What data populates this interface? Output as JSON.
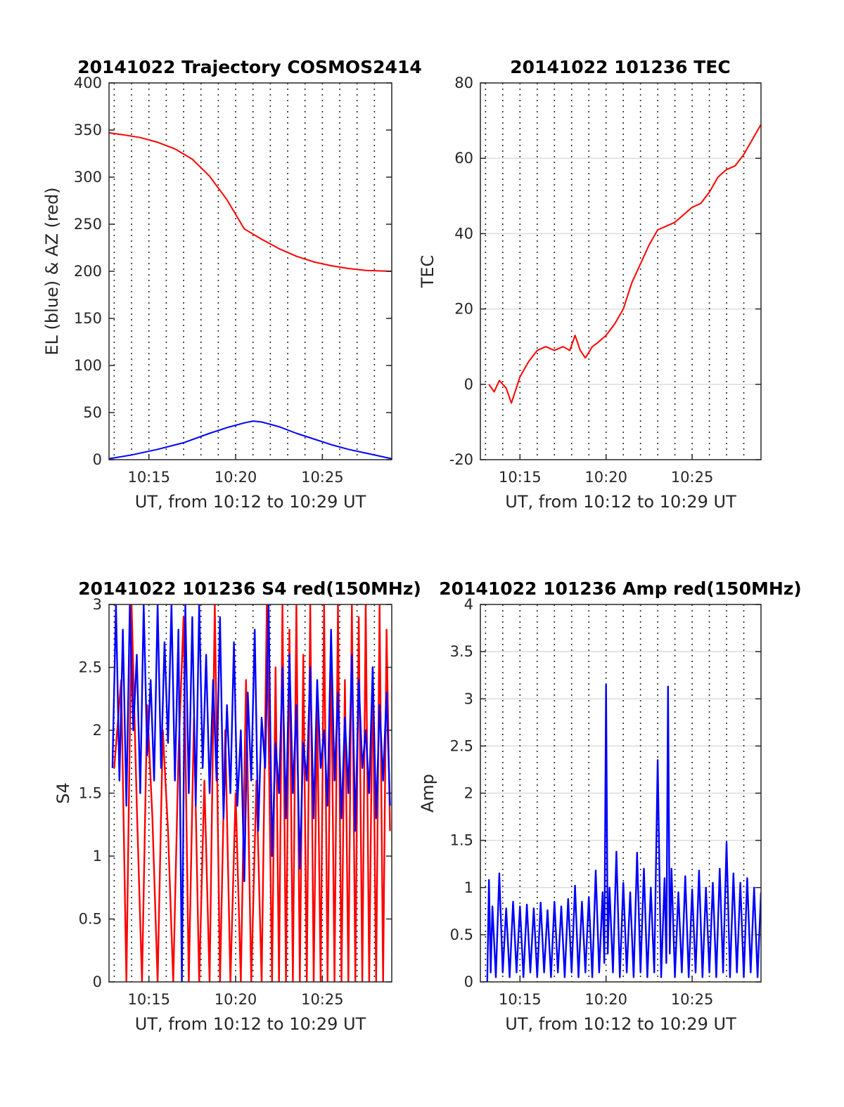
{
  "colors": {
    "red": "#ff0000",
    "blue": "#0000ff",
    "grid": "#262626",
    "axis": "#262626"
  },
  "chart_data": [
    {
      "id": "trajectory",
      "type": "line",
      "title": "20141022 Trajectory COSMOS2414",
      "xlabel": "UT, from 10:12 to 10:29 UT",
      "ylabel": "EL (blue) & AZ (red)",
      "xlim": [
        12.7,
        29.0
      ],
      "ylim": [
        0,
        400
      ],
      "xticks": [
        15,
        20,
        25
      ],
      "xticklabels": [
        "10:15",
        "10:20",
        "10:25"
      ],
      "yticks": [
        0,
        50,
        100,
        150,
        200,
        250,
        300,
        350,
        400
      ],
      "yticklabels": [
        "0",
        "50",
        "100",
        "150",
        "200",
        "250",
        "300",
        "350",
        "400"
      ],
      "grid": "vertical-dotted",
      "series": [
        {
          "color": "red",
          "x": [
            12.7,
            13.5,
            14.5,
            15.5,
            16.5,
            17.5,
            18.5,
            19.5,
            20.5,
            21.5,
            22.5,
            23.5,
            24.5,
            25.5,
            26.5,
            27.5,
            29.0
          ],
          "y": [
            347,
            345,
            342,
            337,
            330,
            319,
            301,
            276,
            245,
            234,
            224,
            216,
            210,
            206,
            203,
            201,
            200
          ]
        },
        {
          "color": "blue",
          "x": [
            12.7,
            14.0,
            15.5,
            17.0,
            18.5,
            19.5,
            20.5,
            21.0,
            21.5,
            22.5,
            23.5,
            24.5,
            25.5,
            26.5,
            27.5,
            29.0
          ],
          "y": [
            1,
            5,
            11,
            18,
            28,
            34,
            39,
            41,
            40,
            35,
            28,
            22,
            16,
            11,
            7,
            1
          ]
        }
      ]
    },
    {
      "id": "tec",
      "type": "line",
      "title": "20141022 101236 TEC",
      "xlabel": "UT, from 10:12 to 10:29 UT",
      "ylabel": "TEC",
      "xlim": [
        12.7,
        29.0
      ],
      "ylim": [
        -20,
        80
      ],
      "xticks": [
        15,
        20,
        25
      ],
      "xticklabels": [
        "10:15",
        "10:20",
        "10:25"
      ],
      "yticks": [
        -20,
        0,
        20,
        40,
        60,
        80
      ],
      "yticklabels": [
        "-20",
        "0",
        "20",
        "40",
        "60",
        "80"
      ],
      "grid": "horizontal-solid-vertical-dotted",
      "series": [
        {
          "color": "red",
          "x": [
            13.2,
            13.5,
            13.8,
            14.2,
            14.5,
            15.0,
            15.5,
            16.0,
            16.5,
            17.0,
            17.5,
            17.9,
            18.2,
            18.5,
            18.8,
            19.2,
            19.5,
            20.0,
            20.5,
            21.0,
            21.5,
            22.0,
            22.5,
            23.0,
            23.5,
            24.0,
            24.5,
            25.0,
            25.5,
            26.0,
            26.5,
            27.0,
            27.5,
            28.0,
            28.5,
            29.0
          ],
          "y": [
            0,
            -2,
            1,
            -1,
            -5,
            2,
            6,
            9,
            10,
            9,
            10,
            9,
            13,
            9,
            7,
            10,
            11,
            13,
            16,
            20,
            27,
            32,
            37,
            41,
            42,
            43,
            45,
            47,
            48,
            51,
            55,
            57,
            58,
            61,
            65,
            69
          ]
        }
      ]
    },
    {
      "id": "s4",
      "type": "line",
      "title": "20141022 101236 S4 red(150MHz)",
      "xlabel": "UT, from 10:12 to 10:29 UT",
      "ylabel": "S4",
      "xlim": [
        12.7,
        29.0
      ],
      "ylim": [
        0,
        3
      ],
      "xticks": [
        15,
        20,
        25
      ],
      "xticklabels": [
        "10:15",
        "10:20",
        "10:25"
      ],
      "yticks": [
        0,
        0.5,
        1,
        1.5,
        2,
        2.5,
        3
      ],
      "yticklabels": [
        "0",
        "0.5",
        "1",
        "1.5",
        "2",
        "2.5",
        "3"
      ],
      "grid": "vertical-dotted",
      "series": [
        {
          "color": "red",
          "x": [
            13.0,
            13.4,
            13.7,
            14.0,
            14.3,
            14.6,
            14.9,
            15.2,
            15.5,
            15.8,
            16.1,
            16.4,
            16.7,
            17.0,
            17.3,
            17.6,
            17.9,
            18.2,
            18.5,
            18.8,
            19.1,
            19.4,
            19.7,
            20.0,
            20.3,
            20.6,
            20.9,
            21.2,
            21.5,
            21.8,
            22.1,
            22.3,
            22.5,
            22.7,
            22.9,
            23.1,
            23.3,
            23.5,
            23.7,
            23.9,
            24.1,
            24.3,
            24.5,
            24.7,
            24.9,
            25.1,
            25.3,
            25.5,
            25.7,
            25.9,
            26.1,
            26.3,
            26.5,
            26.7,
            26.9,
            27.1,
            27.3,
            27.5,
            27.7,
            27.9,
            28.1,
            28.3,
            28.5,
            28.7,
            28.9
          ],
          "y": [
            1.7,
            2.4,
            0.0,
            3.0,
            1.4,
            0.0,
            2.2,
            1.3,
            0.0,
            2.0,
            1.2,
            0.0,
            1.8,
            2.9,
            0.0,
            2.1,
            0.0,
            1.6,
            0.0,
            3.0,
            0.0,
            2.0,
            0.0,
            1.5,
            0.0,
            2.4,
            0.0,
            1.6,
            0.0,
            3.0,
            0.0,
            2.5,
            0.0,
            3.0,
            0.0,
            2.8,
            0.0,
            3.0,
            0.0,
            2.6,
            0.0,
            3.0,
            0.0,
            2.2,
            0.0,
            3.0,
            0.0,
            2.7,
            0.0,
            3.0,
            0.0,
            2.4,
            0.0,
            3.0,
            0.0,
            2.9,
            0.0,
            3.0,
            0.0,
            2.5,
            0.0,
            3.0,
            0.0,
            2.8,
            1.2
          ]
        },
        {
          "color": "blue",
          "x": [
            12.9,
            13.1,
            13.3,
            13.5,
            13.7,
            13.9,
            14.1,
            14.3,
            14.5,
            14.7,
            14.9,
            15.1,
            15.3,
            15.5,
            15.7,
            15.9,
            16.1,
            16.3,
            16.5,
            16.7,
            16.9,
            17.1,
            17.3,
            17.5,
            17.7,
            17.9,
            18.1,
            18.3,
            18.5,
            18.7,
            18.9,
            19.1,
            19.3,
            19.5,
            19.7,
            19.9,
            20.1,
            20.3,
            20.5,
            20.7,
            20.9,
            21.1,
            21.3,
            21.5,
            21.7,
            21.9,
            22.1,
            22.3,
            22.5,
            22.7,
            22.9,
            23.1,
            23.3,
            23.5,
            23.7,
            23.9,
            24.1,
            24.3,
            24.5,
            24.7,
            24.9,
            25.1,
            25.3,
            25.5,
            25.7,
            25.9,
            26.1,
            26.3,
            26.5,
            26.7,
            26.9,
            27.1,
            27.3,
            27.5,
            27.7,
            27.9,
            28.1,
            28.3,
            28.5,
            28.7,
            28.9
          ],
          "y": [
            1.7,
            3.0,
            1.6,
            2.8,
            1.4,
            3.0,
            2.0,
            2.6,
            1.5,
            3.0,
            1.8,
            2.4,
            1.6,
            3.0,
            1.7,
            2.7,
            1.9,
            3.0,
            1.6,
            2.8,
            0.0,
            3.0,
            1.5,
            2.9,
            1.4,
            3.0,
            1.7,
            2.6,
            1.5,
            2.4,
            1.6,
            2.9,
            1.3,
            2.2,
            1.5,
            2.7,
            1.4,
            2.0,
            0.8,
            2.3,
            1.6,
            2.8,
            1.2,
            2.1,
            1.7,
            3.0,
            1.0,
            1.9,
            1.5,
            2.5,
            1.3,
            2.6,
            1.5,
            2.2,
            0.9,
            1.9,
            1.6,
            2.5,
            1.3,
            2.4,
            1.7,
            2.0,
            1.4,
            2.8,
            1.6,
            2.3,
            1.3,
            2.1,
            1.5,
            2.6,
            1.2,
            2.4,
            1.7,
            2.0,
            1.5,
            2.5,
            1.3,
            2.2,
            1.6,
            2.3,
            1.4
          ]
        }
      ]
    },
    {
      "id": "amp",
      "type": "line",
      "title": "20141022 101236 Amp red(150MHz)",
      "xlabel": "UT, from 10:12 to 10:29 UT",
      "ylabel": "Amp",
      "xlim": [
        12.7,
        29.0
      ],
      "ylim": [
        0,
        4
      ],
      "xticks": [
        15,
        20,
        25
      ],
      "xticklabels": [
        "10:15",
        "10:20",
        "10:25"
      ],
      "yticks": [
        0,
        0.5,
        1,
        1.5,
        2,
        2.5,
        3,
        3.5,
        4
      ],
      "yticklabels": [
        "0",
        "0.5",
        "1",
        "1.5",
        "2",
        "2.5",
        "3",
        "3.5",
        "4"
      ],
      "grid": "horizontal-solid-vertical-dotted",
      "series": [
        {
          "color": "blue",
          "x": [
            13.1,
            13.2,
            13.3,
            13.4,
            13.6,
            13.8,
            14.0,
            14.2,
            14.4,
            14.6,
            14.8,
            15.0,
            15.2,
            15.4,
            15.6,
            15.8,
            16.0,
            16.2,
            16.4,
            16.6,
            16.8,
            17.0,
            17.2,
            17.4,
            17.6,
            17.8,
            18.0,
            18.2,
            18.4,
            18.6,
            18.8,
            19.0,
            19.2,
            19.4,
            19.6,
            19.8,
            19.9,
            20.0,
            20.1,
            20.2,
            20.4,
            20.6,
            20.8,
            21.0,
            21.2,
            21.4,
            21.6,
            21.8,
            22.0,
            22.2,
            22.4,
            22.6,
            22.8,
            23.0,
            23.2,
            23.4,
            23.5,
            23.6,
            23.7,
            23.8,
            24.0,
            24.2,
            24.4,
            24.6,
            24.8,
            25.0,
            25.2,
            25.4,
            25.6,
            25.8,
            26.0,
            26.2,
            26.4,
            26.6,
            26.8,
            27.0,
            27.2,
            27.4,
            27.6,
            27.8,
            28.0,
            28.2,
            28.4,
            28.6,
            28.8,
            29.0
          ],
          "y": [
            0.0,
            1.08,
            0.1,
            0.8,
            0.05,
            1.15,
            0.1,
            0.78,
            0.05,
            0.85,
            0.1,
            0.8,
            0.05,
            0.82,
            0.1,
            0.78,
            0.05,
            0.84,
            0.1,
            0.76,
            0.05,
            0.85,
            0.1,
            0.8,
            0.05,
            0.88,
            0.1,
            1.02,
            0.05,
            0.85,
            0.1,
            0.9,
            0.05,
            1.18,
            0.1,
            0.95,
            0.2,
            3.15,
            0.3,
            1.0,
            0.1,
            1.38,
            0.05,
            1.05,
            0.1,
            0.95,
            0.05,
            1.37,
            0.1,
            1.2,
            0.05,
            1.0,
            0.1,
            2.35,
            0.05,
            1.1,
            0.2,
            3.13,
            0.3,
            1.2,
            0.05,
            0.95,
            0.1,
            1.12,
            0.05,
            0.98,
            0.1,
            1.18,
            0.05,
            1.0,
            0.1,
            1.05,
            0.05,
            1.2,
            0.1,
            1.48,
            0.05,
            1.15,
            0.1,
            1.05,
            0.05,
            1.1,
            0.1,
            1.0,
            0.05,
            0.95
          ]
        }
      ]
    }
  ]
}
